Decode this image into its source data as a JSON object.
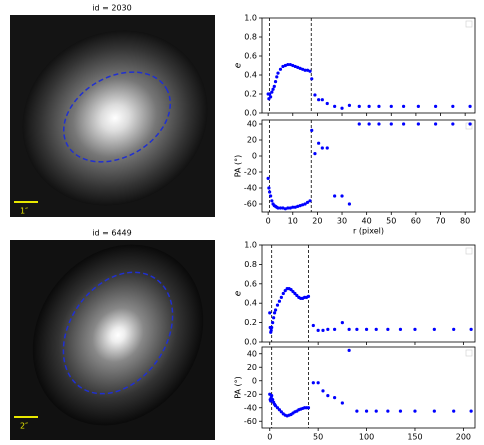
{
  "images": [
    {
      "title": "id = 2030",
      "scale": "1″"
    },
    {
      "title": "id = 6449",
      "scale": "2″"
    }
  ],
  "chart_data": [
    {
      "type": "scatter",
      "ylabel": "e",
      "color": "#0000ff",
      "xlim": [
        -2.5,
        84
      ],
      "ylim": [
        0,
        1
      ],
      "xticks": [
        0,
        10,
        20,
        30,
        40,
        50,
        60,
        70,
        80
      ],
      "xtick_labels": false,
      "yticks": [
        {
          "value": 0,
          "label": "0.0"
        },
        {
          "value": 0.2,
          "label": "0.2"
        },
        {
          "value": 0.4,
          "label": "0.4"
        },
        {
          "value": 0.6,
          "label": "0.6"
        },
        {
          "value": 0.8,
          "label": "0.8"
        },
        {
          "value": 1,
          "label": "1.0"
        }
      ],
      "vlines": [
        0.5,
        17.5
      ],
      "x": [
        0,
        0.3,
        0.6,
        1,
        1.5,
        2,
        2.5,
        3,
        3.5,
        4,
        5,
        6,
        7,
        8,
        9,
        10,
        11,
        12,
        13,
        14,
        15,
        16,
        17,
        17.7,
        19,
        20.5,
        22,
        24,
        27,
        30,
        33,
        37,
        41,
        45,
        50,
        55,
        61,
        68,
        75,
        82
      ],
      "values": [
        0.2,
        0.15,
        0.2,
        0.17,
        0.22,
        0.25,
        0.28,
        0.33,
        0.38,
        0.42,
        0.46,
        0.49,
        0.5,
        0.51,
        0.51,
        0.5,
        0.49,
        0.48,
        0.47,
        0.46,
        0.45,
        0.45,
        0.44,
        0.36,
        0.19,
        0.14,
        0.14,
        0.1,
        0.07,
        0.05,
        0.08,
        0.07,
        0.07,
        0.07,
        0.07,
        0.07,
        0.07,
        0.07,
        0.07,
        0.07
      ]
    },
    {
      "type": "scatter",
      "ylabel": "PA (°)",
      "xlabel": "r (pixel)",
      "color": "#0000ff",
      "xlim": [
        -2.5,
        84
      ],
      "ylim": [
        -70,
        45
      ],
      "xticks": [
        0,
        10,
        20,
        30,
        40,
        50,
        60,
        70,
        80
      ],
      "xtick_labels": true,
      "yticks": [
        -60,
        -40,
        -20,
        0,
        20,
        40
      ],
      "vlines": [
        0.5,
        17.5
      ],
      "x": [
        0,
        0.3,
        0.6,
        1,
        1.5,
        2,
        2.5,
        3,
        3.5,
        4,
        5,
        6,
        7,
        8,
        9,
        10,
        11,
        12,
        13,
        14,
        15,
        16,
        17,
        17.7,
        19,
        20.5,
        22,
        24,
        27,
        30,
        33,
        37,
        41,
        45,
        50,
        55,
        61,
        68,
        75,
        82
      ],
      "values": [
        -28,
        -40,
        -45,
        -50,
        -56,
        -60,
        -62,
        -63,
        -64,
        -65,
        -65,
        -65,
        -66,
        -65,
        -65,
        -64,
        -64,
        -63,
        -62,
        -61,
        -60,
        -58,
        -56,
        32,
        3,
        16,
        10,
        10,
        -50,
        -50,
        -60,
        40,
        40,
        40,
        40,
        40,
        40,
        40,
        40,
        40
      ]
    },
    {
      "type": "scatter",
      "ylabel": "e",
      "color": "#0000ff",
      "xlim": [
        -8,
        212
      ],
      "ylim": [
        0,
        1
      ],
      "xticks": [
        0,
        50,
        100,
        150,
        200
      ],
      "xtick_labels": false,
      "yticks": [
        {
          "value": 0,
          "label": "0.0"
        },
        {
          "value": 0.2,
          "label": "0.2"
        },
        {
          "value": 0.4,
          "label": "0.4"
        },
        {
          "value": 0.6,
          "label": "0.6"
        },
        {
          "value": 0.8,
          "label": "0.8"
        },
        {
          "value": 1,
          "label": "1.0"
        }
      ],
      "vlines": [
        2,
        40
      ],
      "x": [
        0,
        0.5,
        1,
        1.5,
        2,
        3,
        4,
        5,
        6,
        8,
        10,
        12,
        14,
        16,
        18,
        20,
        22,
        24,
        26,
        28,
        30,
        32,
        34,
        36,
        38,
        40,
        45,
        50,
        55,
        60,
        67,
        75,
        82,
        90,
        100,
        110,
        122,
        135,
        150,
        170,
        190,
        208
      ],
      "values": [
        0.3,
        0.15,
        0.1,
        0.12,
        0.15,
        0.2,
        0.25,
        0.3,
        0.33,
        0.38,
        0.42,
        0.46,
        0.5,
        0.53,
        0.55,
        0.55,
        0.54,
        0.52,
        0.5,
        0.48,
        0.46,
        0.45,
        0.45,
        0.46,
        0.46,
        0.47,
        0.17,
        0.12,
        0.12,
        0.13,
        0.13,
        0.2,
        0.13,
        0.13,
        0.13,
        0.13,
        0.13,
        0.13,
        0.13,
        0.13,
        0.13,
        0.13
      ]
    },
    {
      "type": "scatter",
      "ylabel": "PA (°)",
      "color": "#0000ff",
      "xlim": [
        -8,
        212
      ],
      "ylim": [
        -70,
        50
      ],
      "xticks": [
        0,
        50,
        100,
        150,
        200
      ],
      "xtick_labels": true,
      "yticks": [
        -60,
        -40,
        -20,
        0,
        20,
        40
      ],
      "vlines": [
        2,
        40
      ],
      "x": [
        0,
        0.5,
        1,
        1.5,
        2,
        3,
        4,
        5,
        6,
        8,
        10,
        12,
        14,
        16,
        18,
        20,
        22,
        24,
        26,
        28,
        30,
        32,
        34,
        36,
        38,
        40,
        45,
        50,
        55,
        60,
        67,
        75,
        82,
        90,
        100,
        110,
        122,
        135,
        150,
        170,
        190,
        208
      ],
      "values": [
        -20,
        -28,
        -30,
        -25,
        -22,
        -28,
        -32,
        -35,
        -37,
        -40,
        -43,
        -46,
        -49,
        -51,
        -52,
        -51,
        -50,
        -48,
        -46,
        -45,
        -43,
        -42,
        -41,
        -40,
        -40,
        -40,
        -3,
        -3,
        -15,
        -22,
        -25,
        -33,
        45,
        -45,
        -45,
        -45,
        -45,
        -45,
        -45,
        -45,
        -45,
        -45
      ]
    }
  ]
}
